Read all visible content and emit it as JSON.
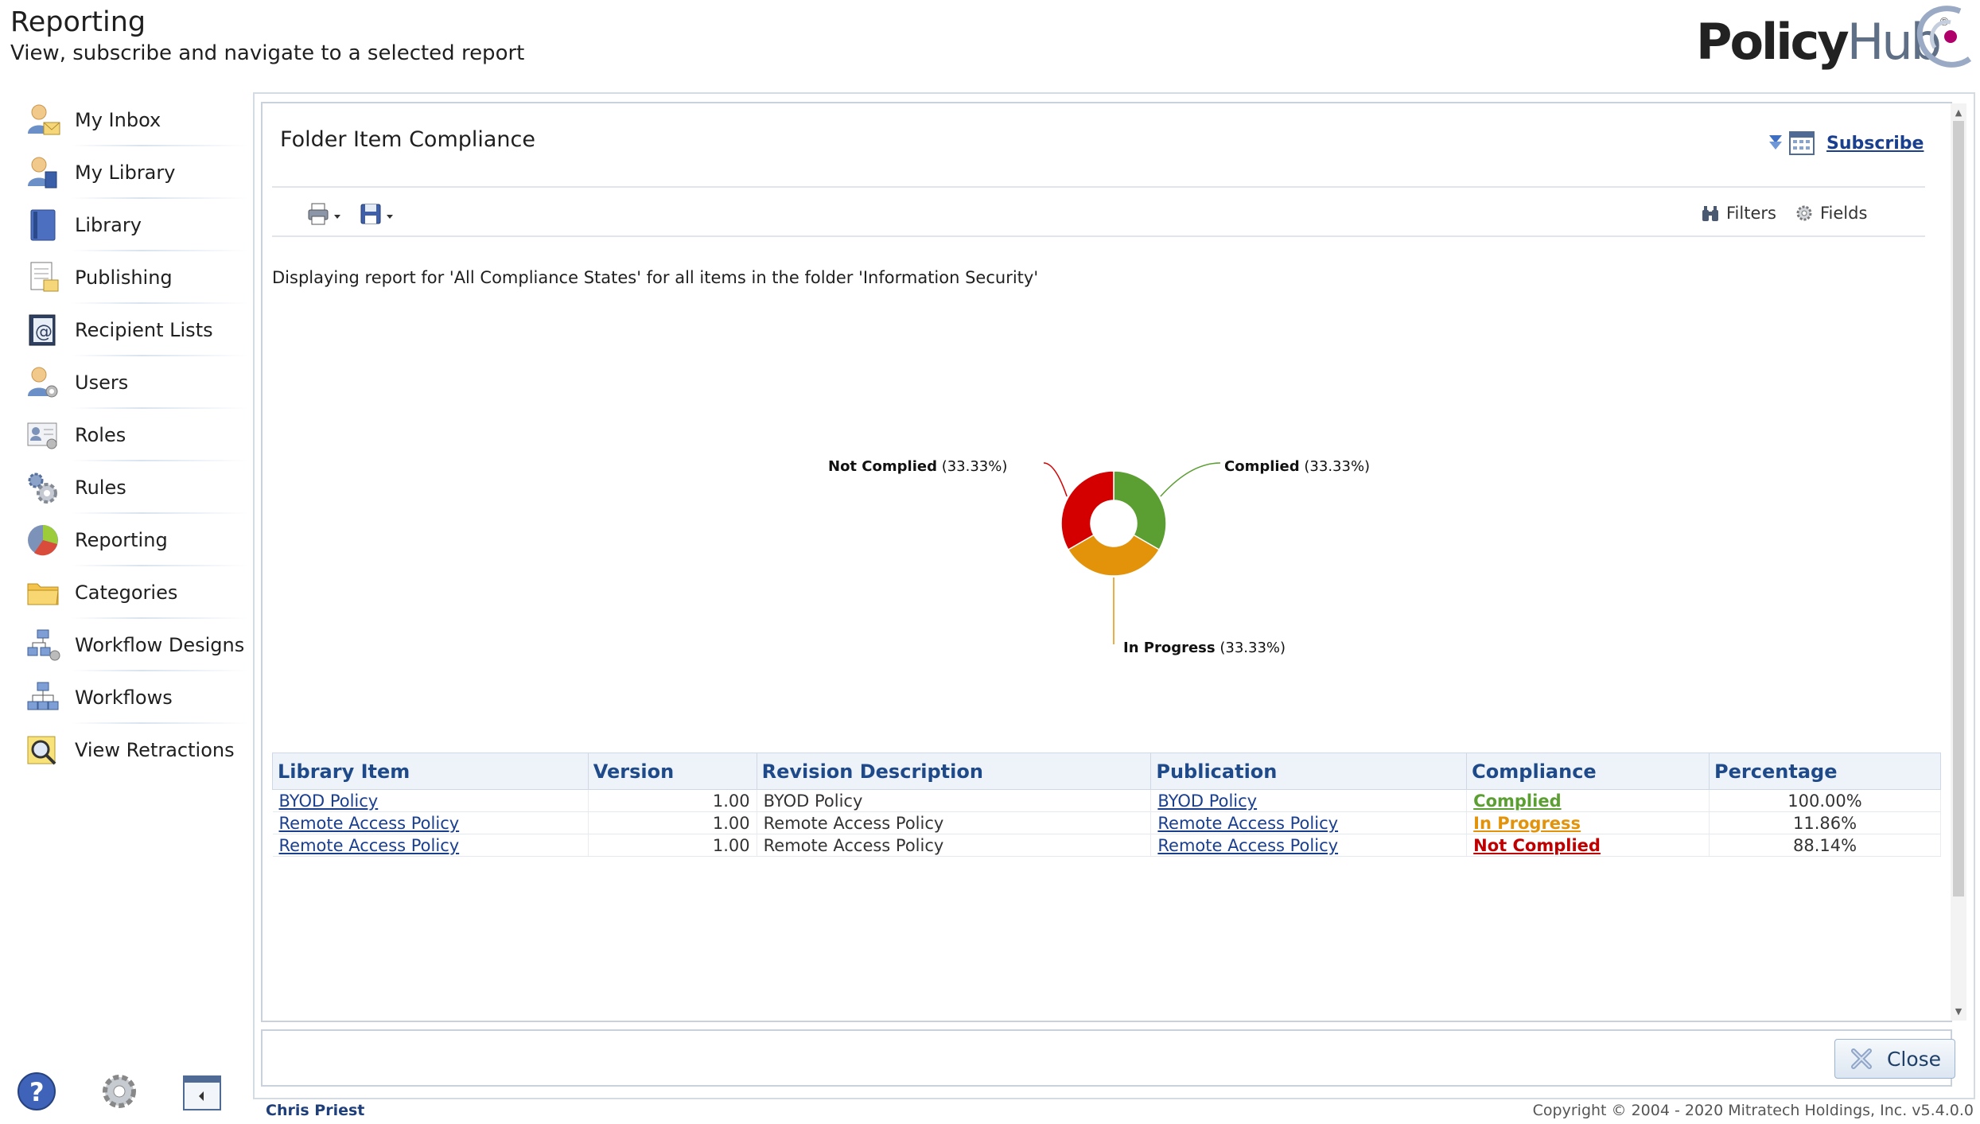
{
  "header": {
    "title": "Reporting",
    "subtitle": "View, subscribe and navigate to a selected report",
    "logo_text_1": "Policy",
    "logo_text_2": "Hub",
    "logo_reg": "®"
  },
  "sidebar": {
    "items": [
      {
        "label": "My Inbox",
        "icon": "inbox-user-icon"
      },
      {
        "label": "My Library",
        "icon": "library-user-icon"
      },
      {
        "label": "Library",
        "icon": "book-icon"
      },
      {
        "label": "Publishing",
        "icon": "publishing-document-icon"
      },
      {
        "label": "Recipient Lists",
        "icon": "address-book-icon"
      },
      {
        "label": "Users",
        "icon": "users-icon"
      },
      {
        "label": "Roles",
        "icon": "roles-icon"
      },
      {
        "label": "Rules",
        "icon": "rules-gears-icon"
      },
      {
        "label": "Reporting",
        "icon": "pie-chart-icon"
      },
      {
        "label": "Categories",
        "icon": "folder-icon"
      },
      {
        "label": "Workflow Designs",
        "icon": "workflow-design-icon"
      },
      {
        "label": "Workflows",
        "icon": "workflow-icon"
      },
      {
        "label": "View Retractions",
        "icon": "magnifier-icon"
      }
    ],
    "bottom_icons": [
      "help-icon",
      "settings-gear-icon",
      "panel-toggle-icon"
    ]
  },
  "report": {
    "title": "Folder Item Compliance",
    "subscribe_label": "Subscribe",
    "filters_label": "Filters",
    "fields_label": "Fields",
    "display_text": "Displaying report for 'All Compliance States' for all items in the folder 'Information Security'"
  },
  "chart_data": {
    "type": "pie",
    "title": "",
    "categories": [
      "Complied",
      "In Progress",
      "Not Complied"
    ],
    "values": [
      33.33,
      33.33,
      33.33
    ],
    "labels": [
      "(33.33%)",
      "(33.33%)",
      "(33.33%)"
    ],
    "colors": [
      "#5b9e32",
      "#e3930a",
      "#d40000"
    ],
    "donut": true,
    "legend": "none"
  },
  "table": {
    "headers": [
      "Library Item",
      "Version",
      "Revision Description",
      "Publication",
      "Compliance",
      "Percentage"
    ],
    "rows": [
      {
        "item": "BYOD Policy",
        "version": "1.00",
        "description": "BYOD Policy",
        "publication": "BYOD Policy",
        "compliance": "Complied",
        "compliance_color": "#5b9e32",
        "percentage": "100.00%"
      },
      {
        "item": "Remote Access Policy",
        "version": "1.00",
        "description": "Remote Access Policy",
        "publication": "Remote Access Policy",
        "compliance": "In Progress",
        "compliance_color": "#e3930a",
        "percentage": "11.86%"
      },
      {
        "item": "Remote Access Policy",
        "version": "1.00",
        "description": "Remote Access Policy",
        "publication": "Remote Access Policy",
        "compliance": "Not Complied",
        "compliance_color": "#c00000",
        "percentage": "88.14%"
      }
    ]
  },
  "footer": {
    "close_label": "Close",
    "user_name": "Chris Priest",
    "copyright": "Copyright © 2004 - 2020 Mitratech Holdings, Inc. v5.4.0.0"
  }
}
